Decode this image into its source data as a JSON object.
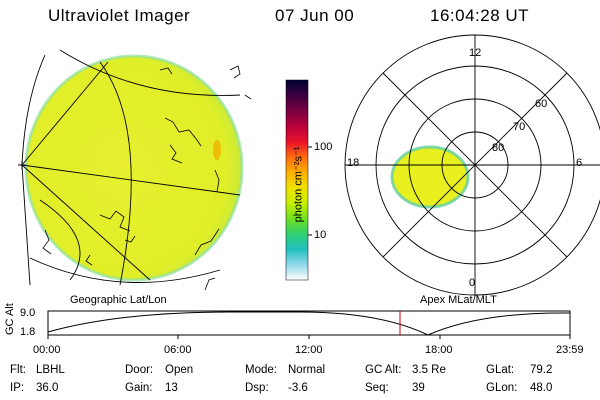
{
  "header": {
    "instrument": "Ultraviolet Imager",
    "date": "07 Jun 00",
    "time": "16:04:28 UT"
  },
  "colorbar": {
    "unit_label": "photon cm⁻²s⁻¹",
    "ticks": [
      "100",
      "10"
    ],
    "colors": [
      "#000030",
      "#3a0040",
      "#7a0040",
      "#b8003c",
      "#e8102a",
      "#ff6a10",
      "#ffb000",
      "#f0e000",
      "#c8f000",
      "#70e020",
      "#30d070",
      "#20c0c0",
      "#90d8e8",
      "#ffffff"
    ]
  },
  "left_panel": {
    "label": "Geographic Lat/Lon",
    "fill_color": "#e8f020"
  },
  "right_panel": {
    "label": "Apex MLat/MLT",
    "mlt_labels": {
      "top": "12",
      "left": "18",
      "right": "6",
      "bottom": "0"
    },
    "lat_labels": [
      "60",
      "70",
      "80"
    ]
  },
  "altitude_plot": {
    "ylabel": "GC Alt",
    "y_ticks": [
      "9.0",
      "1.8"
    ],
    "x_ticks": [
      "00:00",
      "06:00",
      "12:00",
      "18:00",
      "23:59"
    ],
    "current_time_marker": "16:04",
    "marker_color": "#cc0000"
  },
  "info": {
    "row1": [
      {
        "key": "Flt:",
        "value": "LBHL"
      },
      {
        "key": "Door:",
        "value": "Open"
      },
      {
        "key": "Mode:",
        "value": "Normal"
      },
      {
        "key": "GC Alt:",
        "value": "3.5 Re"
      },
      {
        "key": "GLat:",
        "value": "79.2"
      }
    ],
    "row2": [
      {
        "key": "IP:",
        "value": "36.0"
      },
      {
        "key": "Gain:",
        "value": "13"
      },
      {
        "key": "Dsp:",
        "value": "-3.6"
      },
      {
        "key": "Seq:",
        "value": "39"
      },
      {
        "key": "GLon:",
        "value": "48.0"
      }
    ]
  }
}
